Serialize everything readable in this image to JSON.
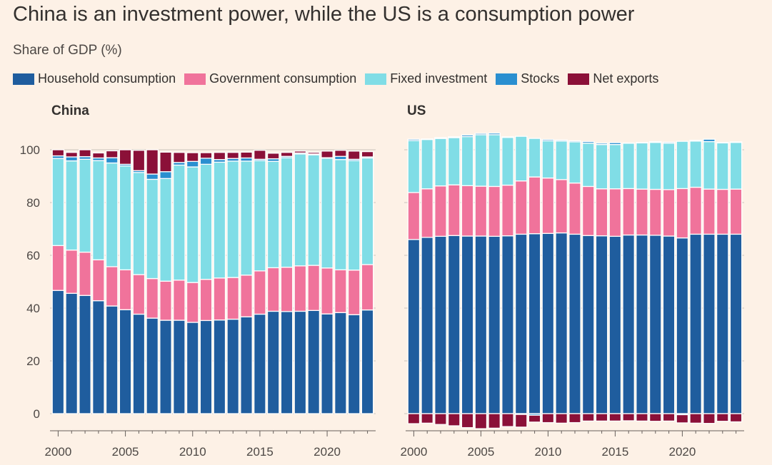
{
  "title": "China is an investment power, while the US is a consumption power",
  "subtitle": "Share of GDP (%)",
  "legend": [
    {
      "label": "Household consumption",
      "color": "#1f5d9e"
    },
    {
      "label": "Government consumption",
      "color": "#f0739b"
    },
    {
      "label": "Fixed investment",
      "color": "#80dde6"
    },
    {
      "label": "Stocks",
      "color": "#2a8fd0"
    },
    {
      "label": "Net exports",
      "color": "#8b1038"
    }
  ],
  "chart_data": [
    {
      "type": "bar",
      "title": "China",
      "stacked": true,
      "ylim": [
        -8,
        106
      ],
      "yticks": [
        0,
        20,
        40,
        60,
        80,
        100
      ],
      "xticks": [
        "2000",
        "2005",
        "2010",
        "2015",
        "2020"
      ],
      "categories": [
        2000,
        2001,
        2002,
        2003,
        2004,
        2005,
        2006,
        2007,
        2008,
        2009,
        2010,
        2011,
        2012,
        2013,
        2014,
        2015,
        2016,
        2017,
        2018,
        2019,
        2020,
        2021,
        2022,
        2023
      ],
      "series": [
        {
          "name": "Household consumption",
          "values": [
            46.7,
            45.6,
            44.8,
            42.8,
            40.8,
            39.4,
            37.7,
            36.2,
            35.4,
            35.4,
            34.6,
            35.3,
            35.5,
            35.8,
            36.7,
            37.7,
            38.8,
            38.7,
            38.8,
            39.1,
            37.8,
            38.3,
            37.5,
            39.3
          ]
        },
        {
          "name": "Government consumption",
          "values": [
            17.0,
            16.4,
            16.4,
            15.5,
            14.9,
            15.1,
            15.0,
            15.0,
            14.8,
            15.2,
            15.1,
            15.6,
            15.9,
            15.8,
            15.8,
            16.4,
            16.5,
            16.8,
            17.2,
            17.1,
            17.4,
            16.2,
            16.9,
            17.2
          ]
        },
        {
          "name": "Fixed investment",
          "values": [
            33.0,
            33.8,
            35.2,
            37.6,
            39.3,
            39.4,
            38.7,
            37.6,
            38.9,
            43.6,
            43.8,
            43.6,
            43.9,
            44.1,
            43.2,
            41.8,
            40.3,
            41.5,
            42.4,
            41.9,
            41.6,
            41.8,
            41.5,
            40.4
          ]
        },
        {
          "name": "Stocks",
          "values": [
            1.0,
            1.5,
            1.0,
            1.0,
            2.0,
            0.6,
            0.7,
            2.0,
            2.6,
            1.0,
            2.1,
            2.3,
            1.0,
            1.0,
            1.2,
            0.5,
            1.0,
            0.5,
            0.4,
            0.3,
            0.2,
            1.2,
            0.5,
            0.4
          ]
        },
        {
          "name": "Net exports",
          "values": [
            2.3,
            1.7,
            2.6,
            1.9,
            2.6,
            5.5,
            7.7,
            9.2,
            7.4,
            3.8,
            3.3,
            2.1,
            2.7,
            2.3,
            2.2,
            3.4,
            2.1,
            1.5,
            0.7,
            0.6,
            2.5,
            2.3,
            3.1,
            2.0
          ]
        }
      ]
    },
    {
      "type": "bar",
      "title": "US",
      "stacked": true,
      "ylim": [
        -8,
        106
      ],
      "yticks": [
        0,
        20,
        40,
        60,
        80,
        100
      ],
      "xticks": [
        "2000",
        "2005",
        "2010",
        "2015",
        "2020"
      ],
      "categories": [
        2000,
        2001,
        2002,
        2003,
        2004,
        2005,
        2006,
        2007,
        2008,
        2009,
        2010,
        2011,
        2012,
        2013,
        2014,
        2015,
        2016,
        2017,
        2018,
        2019,
        2020,
        2021,
        2022,
        2023,
        2024
      ],
      "series": [
        {
          "name": "Household consumption",
          "values": [
            66.0,
            66.8,
            67.2,
            67.5,
            67.3,
            67.3,
            67.2,
            67.4,
            68.0,
            68.2,
            68.3,
            68.5,
            68.0,
            67.5,
            67.4,
            67.2,
            67.7,
            67.7,
            67.6,
            67.3,
            66.6,
            68.0,
            68.0,
            68.0,
            68.0
          ]
        },
        {
          "name": "Government consumption",
          "values": [
            17.8,
            18.4,
            19.1,
            19.2,
            19.1,
            18.9,
            18.9,
            19.2,
            20.2,
            21.5,
            21.0,
            20.2,
            19.4,
            18.6,
            17.8,
            18.0,
            17.6,
            17.4,
            17.4,
            17.6,
            18.7,
            17.8,
            17.1,
            17.0,
            17.1
          ]
        },
        {
          "name": "Fixed investment",
          "values": [
            19.7,
            18.7,
            18.0,
            17.9,
            18.6,
            19.5,
            19.6,
            18.1,
            16.9,
            14.6,
            14.1,
            14.6,
            15.6,
            16.4,
            16.8,
            16.8,
            17.2,
            17.5,
            17.8,
            17.6,
            17.9,
            17.5,
            18.0,
            17.6,
            17.7
          ]
        },
        {
          "name": "Stocks",
          "values": [
            0.5,
            0.2,
            0.3,
            0.3,
            0.6,
            0.5,
            0.6,
            0.2,
            -0.3,
            -0.6,
            0.5,
            0.4,
            0.4,
            0.6,
            0.5,
            0.7,
            0.1,
            0.2,
            0.3,
            0.4,
            -0.4,
            0.3,
            0.9,
            0.2,
            0.2
          ]
        },
        {
          "name": "Net exports",
          "values": [
            -3.8,
            -3.6,
            -4.1,
            -4.6,
            -5.3,
            -5.7,
            -5.5,
            -4.9,
            -4.8,
            -2.6,
            -3.4,
            -3.6,
            -3.4,
            -2.8,
            -2.8,
            -2.8,
            -2.7,
            -2.8,
            -2.9,
            -2.8,
            -3.1,
            -3.6,
            -3.7,
            -2.9,
            -3.1
          ]
        }
      ]
    }
  ]
}
